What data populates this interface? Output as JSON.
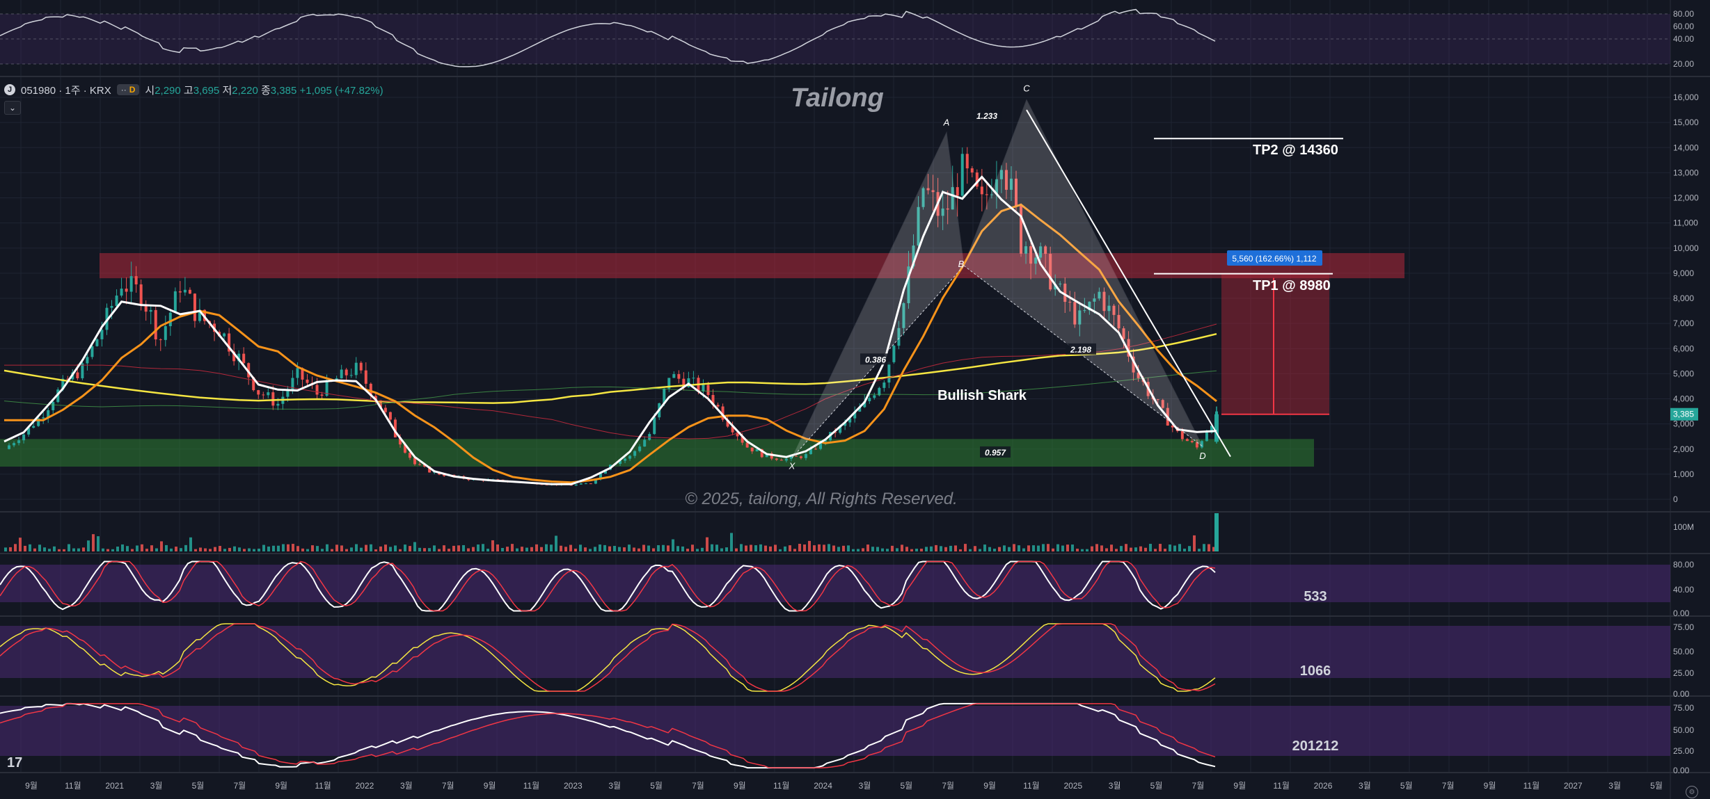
{
  "header": {
    "symbol": "051980 · 1주 · KRX",
    "logo_glyph": "J",
    "market_status": "D",
    "open_label": "시",
    "open": "2,290",
    "high_label": "고",
    "high": "3,695",
    "low_label": "저",
    "low": "2,220",
    "close_label": "종",
    "close": "3,385",
    "change": "+1,095 (+47.82%)",
    "collapse_icon": "chevron-down-icon"
  },
  "main_pane": {
    "author_title": "Tailong",
    "copyright": "© 2025, tailong, All Rights Reserved.",
    "pattern_label": "Bullish Shark",
    "tp1_label": "TP1 @ 8980",
    "tp2_label": "TP2 @ 14360",
    "measure_label": "5,560 (162.66%) 1,112",
    "current_price_tag": "3,385",
    "point_labels": [
      "X",
      "A",
      "B",
      "C",
      "D"
    ],
    "ratio_labels": [
      "0.386",
      "1.233",
      "2.198",
      "0.957"
    ],
    "price_axis_labels": [
      "16,000",
      "15,000",
      "14,000",
      "13,000",
      "12,000",
      "11,000",
      "10,000",
      "9,000",
      "8,000",
      "7,000",
      "6,000",
      "5,000",
      "4,000",
      "3,000",
      "2,000",
      "1,000",
      "0"
    ]
  },
  "top_oscillator": {
    "axis_labels": [
      "80.00",
      "60.00",
      "40.00",
      "20.00"
    ]
  },
  "volume_pane": {
    "axis_label": "100M"
  },
  "stoch_panes": [
    {
      "label": "533",
      "axis_labels": [
        "80.00",
        "40.00",
        "0.00"
      ]
    },
    {
      "label": "1066",
      "axis_labels": [
        "75.00",
        "50.00",
        "25.00",
        "0.00"
      ]
    },
    {
      "label": "201212",
      "axis_labels": [
        "75.00",
        "50.00",
        "25.00",
        "0.00"
      ]
    }
  ],
  "time_axis": {
    "labels": [
      "9월",
      "11월",
      "2021",
      "3월",
      "5월",
      "7월",
      "9월",
      "11월",
      "2022",
      "3월",
      "7월",
      "9월",
      "11월",
      "2023",
      "3월",
      "5월",
      "7월",
      "9월",
      "11월",
      "2024",
      "3월",
      "5월",
      "7월",
      "9월",
      "11월",
      "2025",
      "3월",
      "5월",
      "7월",
      "9월",
      "11월",
      "2026",
      "3월",
      "5월",
      "7월",
      "9월",
      "11월",
      "2027",
      "3월",
      "5월"
    ]
  },
  "colors": {
    "background": "#131722",
    "up_candle": "#26a69a",
    "down_candle": "#ef5350",
    "fast_ma": "#ffffff",
    "mid_ma": "#f7931a",
    "slow_ma": "#f5e642",
    "resistance_zone": "#b2283a",
    "support_zone": "#2e7d32",
    "stoch_band": "#4a2a73",
    "price_tag": "#26a69a",
    "measure_box": "#1e6fd9"
  },
  "logos": {
    "bottom_left_logo": "17",
    "settings_icon": "gear-icon"
  },
  "chart_data": [
    {
      "type": "line",
      "title": "Tailong",
      "series": [],
      "x_labels": [
        "9월",
        "11월",
        "2021",
        "3월",
        "5월",
        "7월",
        "9월",
        "11월",
        "2022",
        "3월",
        "7월",
        "9월",
        "11월",
        "2023",
        "3월",
        "5월",
        "7월",
        "9월",
        "11월",
        "2024",
        "3월",
        "5월",
        "7월",
        "9월",
        "11월",
        "2025",
        "3월",
        "5월",
        "7월"
      ],
      "ohlc_last": {
        "open": 2290,
        "high": 3695,
        "low": 2220,
        "close": 3385
      },
      "close_path": [
        2000,
        2600,
        3400,
        4600,
        5200,
        6800,
        8600,
        8200,
        6400,
        8500,
        7200,
        6800,
        5600,
        4300,
        3800,
        5000,
        4200,
        4800,
        5200,
        4100,
        2600,
        1400,
        1050,
        900,
        780,
        760,
        700,
        650,
        600,
        560,
        640,
        1400,
        1700,
        2600,
        4900,
        4700,
        4200,
        3100,
        2100,
        1700,
        1600,
        1750,
        2400,
        3000,
        3800,
        4800,
        7800,
        12400,
        11200,
        13100,
        11600,
        13800,
        10400,
        9600,
        8100,
        7100,
        8200,
        6800,
        4900,
        3700,
        2600,
        2050,
        3385
      ],
      "ylim": [
        0,
        16500
      ],
      "harmonic_points": {
        "X": 1650,
        "A": 14600,
        "B": 9300,
        "C": 15900,
        "D": 2100
      },
      "targets": {
        "TP1": 8980,
        "TP2": 14360
      },
      "zones": {
        "resistance": [
          8800,
          9800
        ],
        "support": [
          1300,
          2400
        ]
      }
    }
  ]
}
